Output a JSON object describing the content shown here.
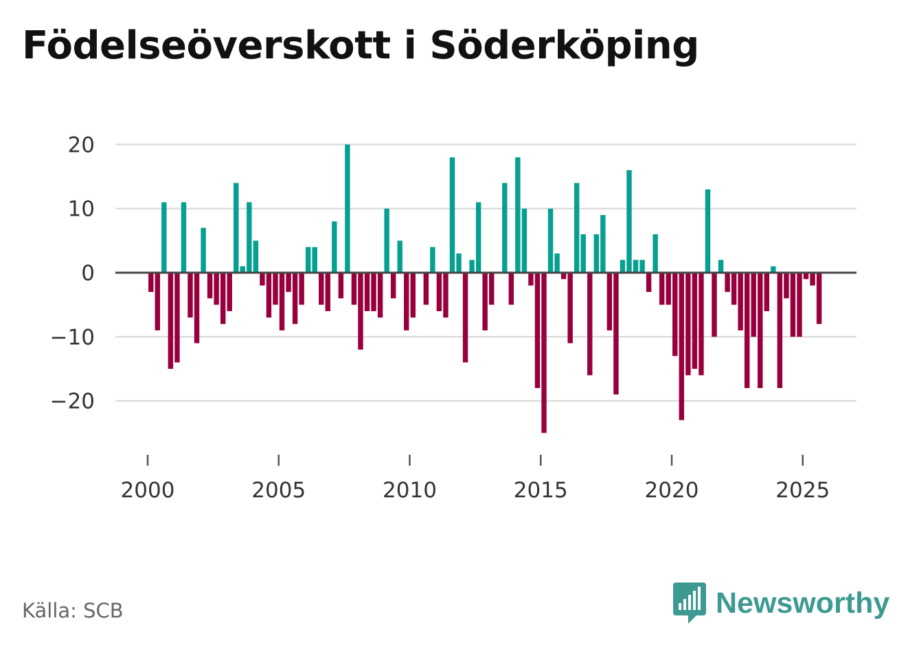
{
  "title": "Födelseöverskott i Söderköping",
  "source": "Källa: SCB",
  "brand": "Newsworthy",
  "colors": {
    "positive": "#06a090",
    "negative": "#98003d",
    "grid": "#dddddd",
    "zero": "#444444"
  },
  "chart_data": {
    "type": "bar",
    "title": "Födelseöverskott i Söderköping",
    "xlabel": "",
    "ylabel": "",
    "ylim": [
      -27,
      20
    ],
    "xlim": [
      1999.6,
      2026.9
    ],
    "x_ticks": [
      2000,
      2005,
      2010,
      2015,
      2020,
      2025
    ],
    "x_tick_labels": [
      "2000",
      "2005",
      "2010",
      "2015",
      "2020",
      "2025"
    ],
    "y_ticks": [
      20,
      10,
      0,
      -10,
      -20
    ],
    "y_tick_labels": [
      "20",
      "10",
      "0",
      "−10",
      "−20"
    ],
    "grid": true,
    "x_start": 2000.125,
    "x_step": 0.25,
    "values": [
      -3,
      -9,
      11,
      -15,
      -14,
      11,
      -7,
      -11,
      7,
      -4,
      -5,
      -8,
      -6,
      14,
      1,
      11,
      5,
      -2,
      -7,
      -5,
      -9,
      -3,
      -8,
      -5,
      4,
      4,
      -5,
      -6,
      8,
      -4,
      20,
      -5,
      -12,
      -6,
      -6,
      -7,
      10,
      -4,
      5,
      -9,
      -7,
      0,
      -5,
      4,
      -6,
      -7,
      18,
      3,
      -14,
      2,
      11,
      -9,
      -5,
      0,
      14,
      -5,
      18,
      10,
      -2,
      -18,
      -25,
      10,
      3,
      -1,
      -11,
      14,
      6,
      -16,
      6,
      9,
      -9,
      -19,
      2,
      16,
      2,
      2,
      -3,
      6,
      -5,
      -5,
      -13,
      -23,
      -16,
      -15,
      -16,
      13,
      -10,
      2,
      -3,
      -5,
      -9,
      -18,
      -10,
      -18,
      -6,
      1,
      -18,
      -4,
      -10,
      -10,
      -1,
      -2,
      -8
    ]
  }
}
